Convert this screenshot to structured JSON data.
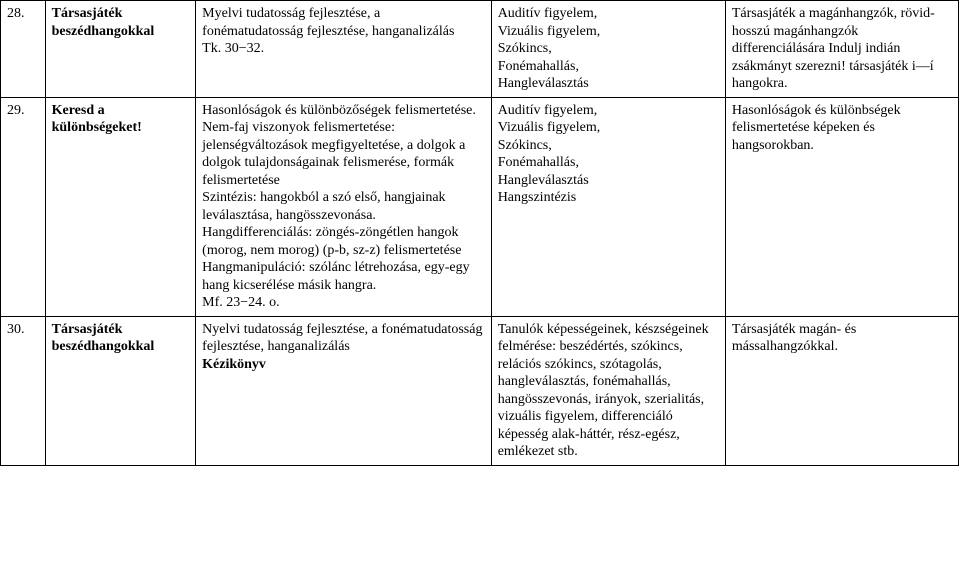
{
  "rows": [
    {
      "num": "28.",
      "title_lines": [
        "Társasjáték",
        "beszédhangokkal"
      ],
      "dev": "Myelvi tudatosság fejlesztése, a fonématudatosság fejlesztése, hanganalizálás\nTk. 30−32.",
      "skill": "Auditív figyelem,\nVizuális figyelem,\nSzókincs,\nFonémahallás,\nHangleválasztás",
      "goal": "Társasjáték a magánhangzók, rövid-hosszú magánhangzók differenciálására Indulj indián zsákmányt szerezni! társasjáték i—í hangokra."
    },
    {
      "num": "29.",
      "title_lines": [
        "Keresd a",
        "különbségeket!"
      ],
      "dev": "Hasonlóságok és különbözőségek felismertetése.\nNem-faj viszonyok felismertetése: jelenségváltozások megfigyeltetése, a dolgok a dolgok tulajdonságainak felismerése, formák felismertetése\nSzintézis: hangokból a szó első, hangjainak leválasztása, hangösszevonása.\nHangdifferenciálás: zöngés-zöngétlen hangok (morog, nem morog) (p-b, sz-z) felismertetése\nHangmanipuláció: szólánc létrehozása, egy-egy hang kicserélése másik hangra.\nMf. 23−24. o.",
      "skill": "Auditív figyelem,\nVizuális figyelem,\nSzókincs,\nFonémahallás,\nHangleválasztás\nHangszintézis",
      "goal": "Hasonlóságok és különbségek felismertetése képeken és hangsorokban."
    },
    {
      "num": "30.",
      "title_lines": [
        "Társasjáték",
        "beszédhangokkal"
      ],
      "dev": "Nyelvi tudatosság fejlesztése, a fonématudatosság fejlesztése, hanganalizálás\n",
      "dev_bold_suffix": "Kézikönyv",
      "skill": "Tanulók képességeinek, készségeinek felmérése: beszédértés, szókincs, relációs szókincs, szótagolás, hangleválasztás, fonémahallás, hangösszevonás, irányok, szerialitás, vizuális figyelem, differenciáló képesség alak-háttér, rész-egész, emlékezet stb.",
      "goal": "Társasjáték magán- és mássalhangzókkal."
    }
  ]
}
